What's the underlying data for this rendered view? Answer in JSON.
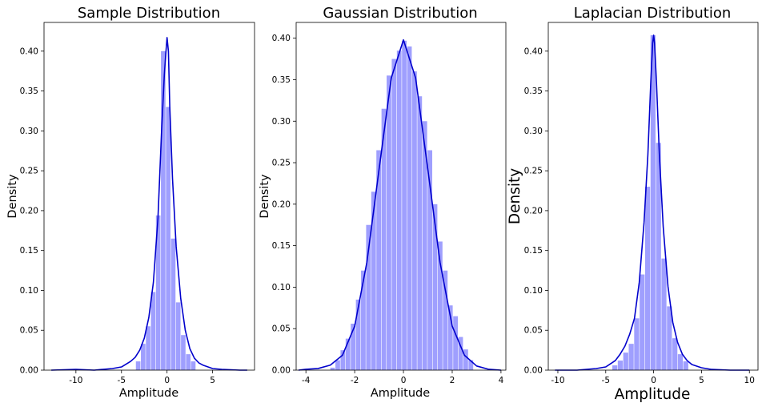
{
  "chart_data": [
    {
      "type": "histogram+kde",
      "title": "Sample Distribution",
      "xlabel": "Amplitude",
      "ylabel": "Density",
      "xlim": [
        -13.5,
        9.6
      ],
      "ylim": [
        0,
        0.436
      ],
      "xticks": [
        -10,
        -5,
        0,
        5
      ],
      "yticks": [
        0.0,
        0.05,
        0.1,
        0.15,
        0.2,
        0.25,
        0.3,
        0.35,
        0.4
      ],
      "bar_color": "#9f9ffe",
      "line_color": "#0000cc",
      "histogram": {
        "bins": [
          [
            -3.42,
            -2.87,
            0.011
          ],
          [
            -2.87,
            -2.32,
            0.033
          ],
          [
            -2.32,
            -1.77,
            0.055
          ],
          [
            -1.77,
            -1.22,
            0.098
          ],
          [
            -1.22,
            -0.67,
            0.194
          ],
          [
            -0.67,
            -0.12,
            0.4
          ],
          [
            -0.12,
            0.43,
            0.33
          ],
          [
            0.43,
            0.98,
            0.165
          ],
          [
            0.98,
            1.53,
            0.085
          ],
          [
            1.53,
            2.08,
            0.044
          ],
          [
            2.08,
            2.63,
            0.02
          ],
          [
            2.63,
            3.18,
            0.011
          ]
        ]
      },
      "kde": {
        "x": [
          -12.7,
          -10,
          -8,
          -6,
          -5,
          -4,
          -3.5,
          -3,
          -2.5,
          -2,
          -1.5,
          -1,
          -0.6,
          -0.3,
          -0.15,
          0,
          0.15,
          0.3,
          0.6,
          1,
          1.5,
          2,
          2.5,
          3,
          3.5,
          4,
          5,
          6,
          8,
          8.8
        ],
        "y": [
          0.0,
          0.001,
          0.0,
          0.002,
          0.004,
          0.011,
          0.016,
          0.025,
          0.04,
          0.066,
          0.11,
          0.19,
          0.3,
          0.37,
          0.395,
          0.417,
          0.4,
          0.33,
          0.24,
          0.155,
          0.09,
          0.05,
          0.027,
          0.015,
          0.009,
          0.006,
          0.002,
          0.001,
          0.0,
          0.0
        ]
      }
    },
    {
      "type": "histogram+kde",
      "title": "Gaussian Distribution",
      "xlabel": "Amplitude",
      "ylabel": "Density",
      "xlim": [
        -4.4,
        4.2
      ],
      "ylim": [
        0,
        0.419
      ],
      "xticks": [
        -4,
        -2,
        0,
        2,
        4
      ],
      "yticks": [
        0.0,
        0.05,
        0.1,
        0.15,
        0.2,
        0.25,
        0.3,
        0.35,
        0.4
      ],
      "bar_color": "#9f9ffe",
      "line_color": "#0000cc",
      "histogram": {
        "bins": [
          [
            -3.0,
            -2.79,
            0.003
          ],
          [
            -2.79,
            -2.58,
            0.012
          ],
          [
            -2.58,
            -2.37,
            0.024
          ],
          [
            -2.37,
            -2.16,
            0.038
          ],
          [
            -2.16,
            -1.95,
            0.056
          ],
          [
            -1.95,
            -1.74,
            0.085
          ],
          [
            -1.74,
            -1.53,
            0.12
          ],
          [
            -1.53,
            -1.32,
            0.175
          ],
          [
            -1.32,
            -1.11,
            0.215
          ],
          [
            -1.11,
            -0.9,
            0.265
          ],
          [
            -0.9,
            -0.69,
            0.315
          ],
          [
            -0.69,
            -0.48,
            0.355
          ],
          [
            -0.48,
            -0.27,
            0.375
          ],
          [
            -0.27,
            -0.06,
            0.385
          ],
          [
            -0.06,
            0.15,
            0.397
          ],
          [
            0.15,
            0.36,
            0.39
          ],
          [
            0.36,
            0.57,
            0.36
          ],
          [
            0.57,
            0.78,
            0.33
          ],
          [
            0.78,
            0.99,
            0.3
          ],
          [
            0.99,
            1.2,
            0.265
          ],
          [
            1.2,
            1.41,
            0.2
          ],
          [
            1.41,
            1.62,
            0.155
          ],
          [
            1.62,
            1.83,
            0.12
          ],
          [
            1.83,
            2.04,
            0.078
          ],
          [
            2.04,
            2.25,
            0.065
          ],
          [
            2.25,
            2.46,
            0.04
          ],
          [
            2.46,
            2.67,
            0.025
          ],
          [
            2.67,
            2.88,
            0.012
          ]
        ]
      },
      "kde": {
        "x": [
          -4.3,
          -4,
          -3.5,
          -3,
          -2.5,
          -2,
          -1.5,
          -1,
          -0.5,
          0,
          0.5,
          1,
          1.5,
          2,
          2.5,
          3,
          3.5,
          4
        ],
        "y": [
          0.0,
          0.001,
          0.002,
          0.006,
          0.018,
          0.053,
          0.13,
          0.242,
          0.352,
          0.398,
          0.352,
          0.242,
          0.13,
          0.053,
          0.018,
          0.005,
          0.001,
          0.0
        ]
      }
    },
    {
      "type": "histogram+kde",
      "title": "Laplacian Distribution",
      "xlabel": "Amplitude",
      "ylabel": "Density",
      "xlim": [
        -11.0,
        10.9
      ],
      "ylim": [
        0,
        0.436
      ],
      "xticks": [
        -10,
        -5,
        0,
        5,
        10
      ],
      "yticks": [
        0.0,
        0.05,
        0.1,
        0.15,
        0.2,
        0.25,
        0.3,
        0.35,
        0.4
      ],
      "bar_color": "#9f9ffe",
      "line_color": "#0000cc",
      "histogram": {
        "bins": [
          [
            -4.31,
            -3.74,
            0.006
          ],
          [
            -3.74,
            -3.17,
            0.012
          ],
          [
            -3.17,
            -2.6,
            0.022
          ],
          [
            -2.6,
            -2.03,
            0.033
          ],
          [
            -2.03,
            -1.46,
            0.065
          ],
          [
            -1.46,
            -0.89,
            0.12
          ],
          [
            -0.89,
            -0.32,
            0.23
          ],
          [
            -0.32,
            0.25,
            0.42
          ],
          [
            0.25,
            0.82,
            0.285
          ],
          [
            0.82,
            1.39,
            0.14
          ],
          [
            1.39,
            1.96,
            0.08
          ],
          [
            1.96,
            2.53,
            0.04
          ],
          [
            2.53,
            3.1,
            0.02
          ],
          [
            3.1,
            3.67,
            0.011
          ]
        ]
      },
      "kde": {
        "x": [
          -10.3,
          -8,
          -6,
          -5,
          -4,
          -3.5,
          -3,
          -2.5,
          -2,
          -1.5,
          -1,
          -0.6,
          -0.3,
          -0.1,
          0,
          0.1,
          0.3,
          0.6,
          1,
          1.5,
          2,
          2.5,
          3,
          3.5,
          4,
          5,
          6,
          8,
          10
        ],
        "y": [
          0.0,
          0.0,
          0.002,
          0.004,
          0.012,
          0.02,
          0.03,
          0.045,
          0.065,
          0.11,
          0.185,
          0.27,
          0.36,
          0.41,
          0.42,
          0.41,
          0.36,
          0.27,
          0.18,
          0.105,
          0.06,
          0.035,
          0.02,
          0.012,
          0.007,
          0.003,
          0.001,
          0.0,
          0.0
        ]
      }
    }
  ]
}
